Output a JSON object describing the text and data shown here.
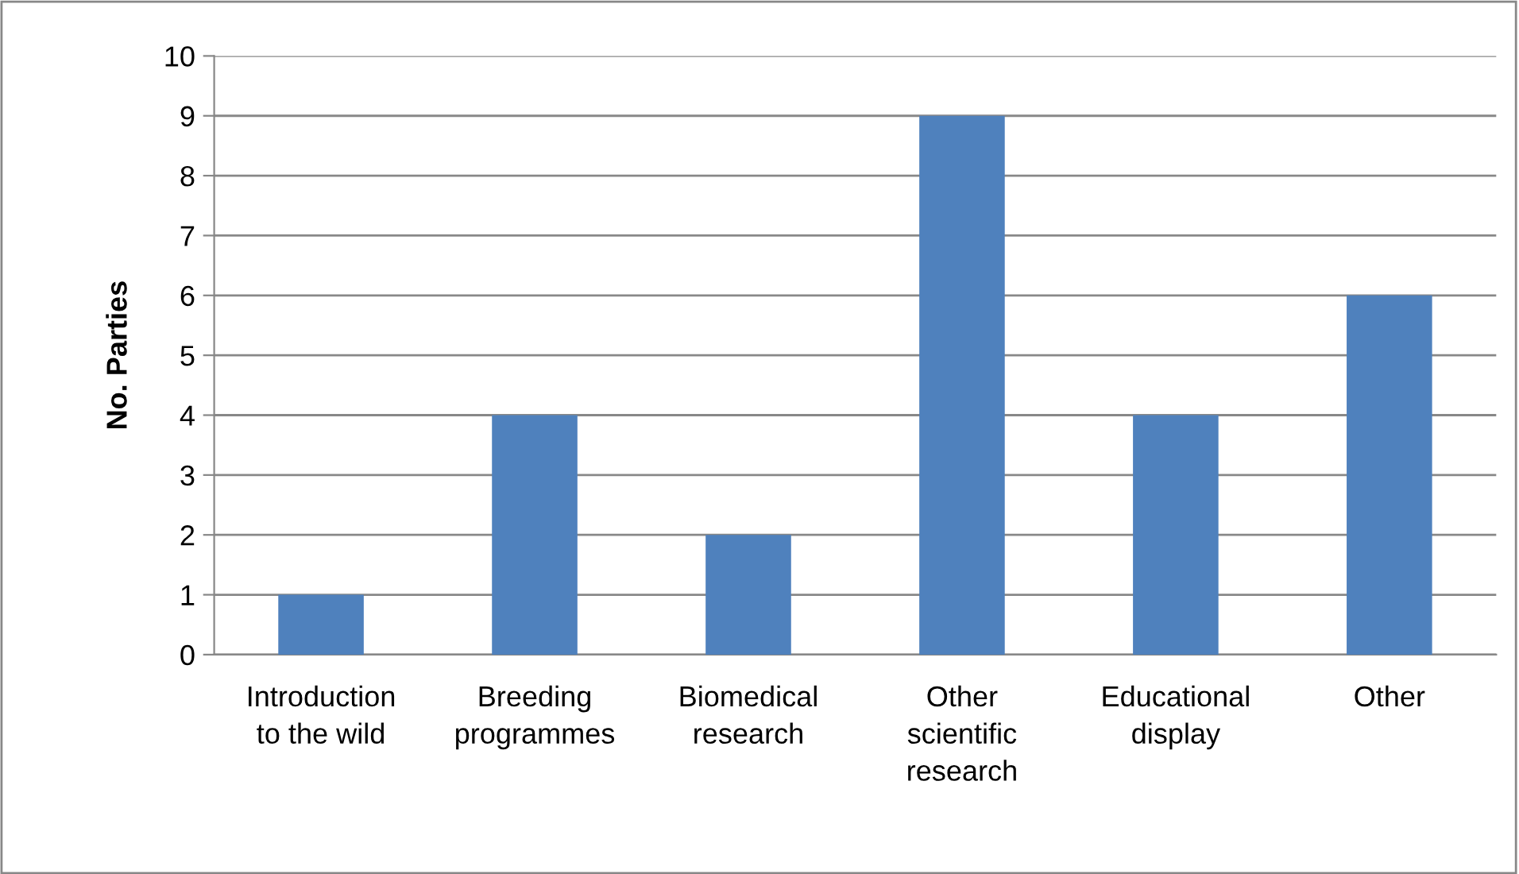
{
  "chart_data": {
    "type": "bar",
    "ylabel": "No. Parties",
    "categories": [
      "Introduction\nto the wild",
      "Breeding\nprogrammes",
      "Biomedical\nresearch",
      "Other\nscientific\nresearch",
      "Educational\ndisplay",
      "Other"
    ],
    "values": [
      1,
      4,
      2,
      9,
      4,
      6
    ],
    "color": "#4f81bd",
    "ylim": [
      0,
      10
    ],
    "yticks": [
      0,
      1,
      2,
      3,
      4,
      5,
      6,
      7,
      8,
      9,
      10
    ],
    "grid": "y",
    "legend": false
  }
}
